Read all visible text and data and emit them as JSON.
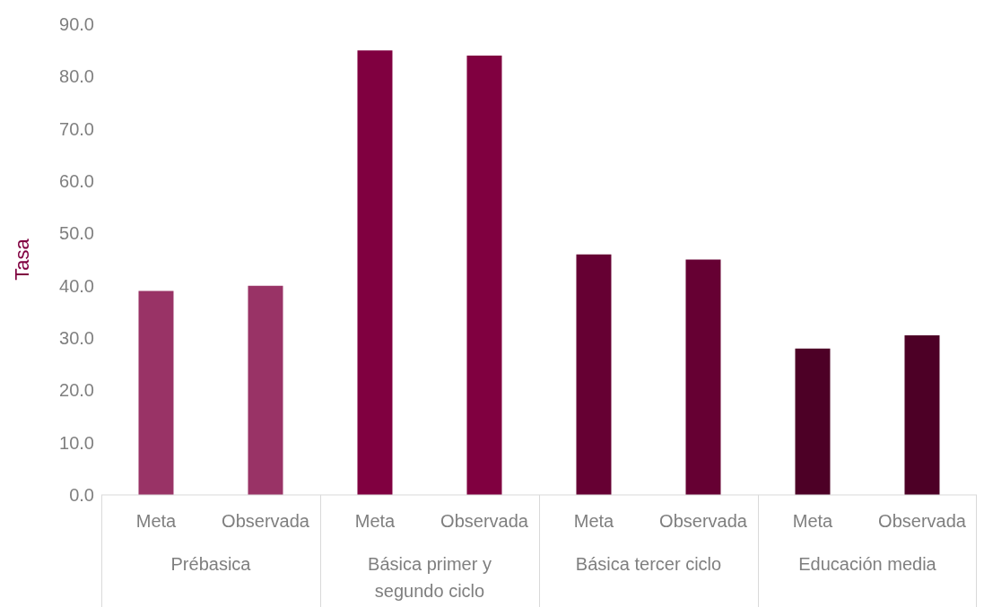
{
  "chart_data": {
    "type": "bar",
    "ylabel": "Tasa",
    "categories": [
      "Meta",
      "Observada",
      "Meta",
      "Observada",
      "Meta",
      "Observada",
      "Meta",
      "Observada"
    ],
    "values": [
      39,
      40,
      85,
      84,
      46,
      45,
      28,
      30.5
    ],
    "colors": [
      "#993366",
      "#993366",
      "#800040",
      "#800040",
      "#660033",
      "#660033",
      "#4d0026",
      "#4d0026"
    ],
    "annotations": [
      "Prébasica",
      "Básica primer  y segundo ciclo",
      "Básica tercer ciclo",
      "Educación media"
    ],
    "ylim": [
      0,
      90
    ],
    "yticks": [
      {
        "value": 0,
        "label": "0.0"
      },
      {
        "value": 10,
        "label": "10.0"
      },
      {
        "value": 20,
        "label": "20.0"
      },
      {
        "value": 30,
        "label": "30.0"
      },
      {
        "value": 40,
        "label": "40.0"
      },
      {
        "value": 50,
        "label": "50.0"
      },
      {
        "value": 60,
        "label": "60.0"
      },
      {
        "value": 70,
        "label": "70.0"
      },
      {
        "value": 80,
        "label": "80.0"
      },
      {
        "value": 90,
        "label": "90.0"
      }
    ],
    "grid": false,
    "legend": false
  }
}
